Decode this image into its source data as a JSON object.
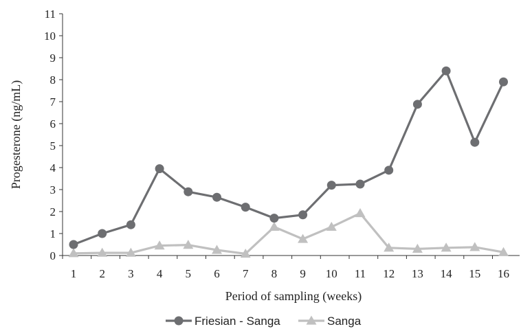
{
  "chart_data": {
    "type": "line",
    "x": [
      1,
      2,
      3,
      4,
      5,
      6,
      7,
      8,
      9,
      10,
      11,
      12,
      13,
      14,
      15,
      16
    ],
    "series": [
      {
        "name": "Friesian - Sanga",
        "color": "#6d6e71",
        "marker": "circle",
        "values": [
          0.5,
          1.0,
          1.4,
          3.95,
          2.9,
          2.65,
          2.2,
          1.7,
          1.85,
          3.2,
          3.25,
          3.88,
          6.88,
          8.4,
          5.15,
          7.9
        ]
      },
      {
        "name": "Sanga",
        "color": "#c0c0c0",
        "marker": "triangle",
        "values": [
          0.1,
          0.12,
          0.12,
          0.45,
          0.48,
          0.25,
          0.08,
          1.3,
          0.75,
          1.3,
          1.92,
          0.35,
          0.3,
          0.35,
          0.38,
          0.15
        ]
      }
    ],
    "xlabel": "Period of sampling (weeks)",
    "ylabel": "Progesterone (ng/mL)",
    "xticks": [
      "1",
      "2",
      "3",
      "4",
      "5",
      "6",
      "7",
      "8",
      "9",
      "10",
      "11",
      "12",
      "13",
      "14",
      "15",
      "16"
    ],
    "yticks": [
      "0",
      "1",
      "2",
      "3",
      "4",
      "5",
      "6",
      "7",
      "8",
      "9",
      "10",
      "11"
    ],
    "ylim": [
      0,
      11
    ],
    "grid": false,
    "legend_position": "bottom"
  }
}
